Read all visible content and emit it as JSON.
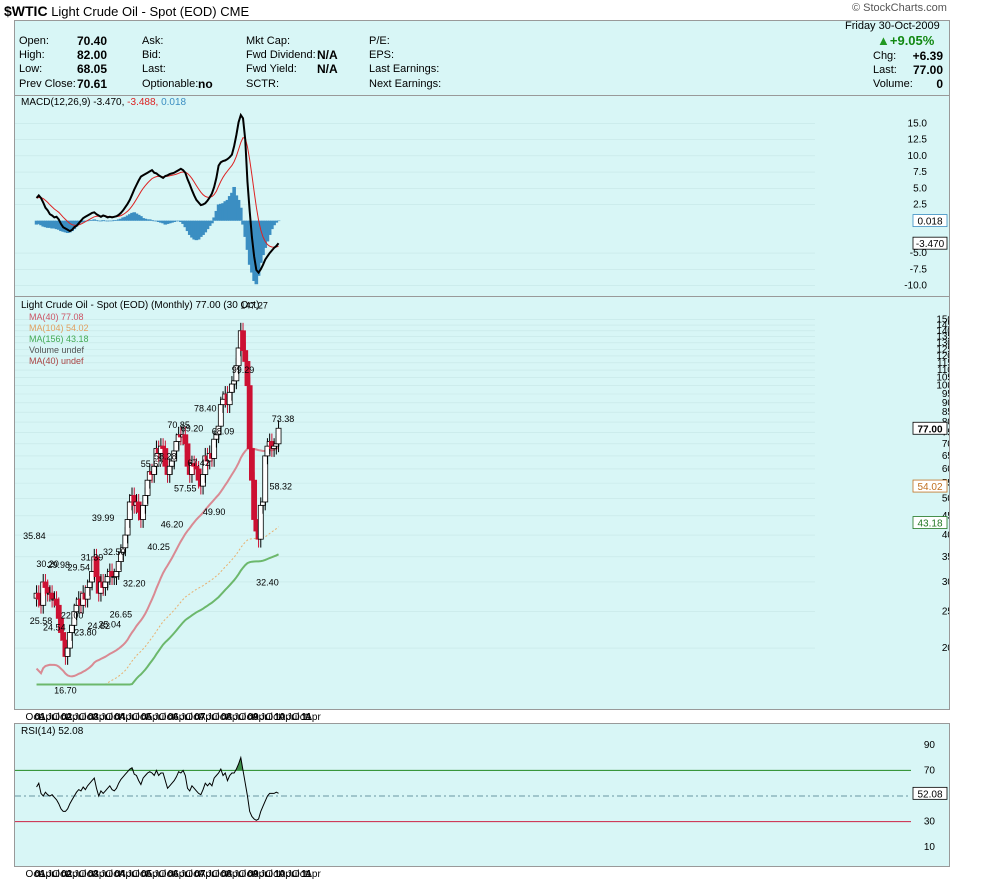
{
  "header": {
    "symbol": "$WTIC",
    "name": "Light Crude Oil - Spot (EOD)",
    "exchange": "CME",
    "brand": "© StockCharts.com"
  },
  "quote": {
    "day_date": "Friday  30-Oct-2009",
    "pct_change": "+9.05%",
    "fields": [
      {
        "label": "Open:",
        "value": "70.40"
      },
      {
        "label": "High:",
        "value": "82.00"
      },
      {
        "label": "Low:",
        "value": "68.05"
      },
      {
        "label": "Prev Close:",
        "value": "70.61"
      },
      {
        "label": "Ask:",
        "value": ""
      },
      {
        "label": "Bid:",
        "value": ""
      },
      {
        "label": "Last:",
        "value": ""
      },
      {
        "label": "Optionable:",
        "value": "no"
      },
      {
        "label": "Mkt Cap:",
        "value": ""
      },
      {
        "label": "Fwd Dividend:",
        "value": "N/A"
      },
      {
        "label": "Fwd Yield:",
        "value": "N/A"
      },
      {
        "label": "SCTR:",
        "value": ""
      },
      {
        "label": "P/E:",
        "value": ""
      },
      {
        "label": "EPS:",
        "value": ""
      },
      {
        "label": "Last Earnings:",
        "value": ""
      },
      {
        "label": "Next Earnings:",
        "value": ""
      },
      {
        "label": "Chg:",
        "value": "+6.39"
      },
      {
        "label": "Last:",
        "value": "77.00"
      },
      {
        "label": "Volume:",
        "value": "0"
      }
    ]
  },
  "chart_data": {
    "type": "candlestick",
    "period": "Monthly",
    "title": "Light Crude Oil - Spot (EOD) (Monthly) 77.00 (30 Oct)",
    "x_axis": {
      "start_year": 2001,
      "end_year": 2011,
      "tick_labels": [
        "Oct",
        "01",
        "Apr",
        "Jul",
        "Oct",
        "02",
        "Apr",
        "Jul",
        "Oct",
        "03",
        "Apr",
        "Jul",
        "Oct",
        "04",
        "Apr",
        "Jul",
        "Oct",
        "05",
        "Apr",
        "Jul",
        "Oct",
        "06",
        "Apr",
        "Jul",
        "Oct",
        "07",
        "Apr",
        "Jul",
        "Oct",
        "08",
        "Apr",
        "Jul",
        "Oct",
        "09",
        "Apr",
        "Jul",
        "Oct",
        "10",
        "Apr",
        "Jul",
        "Oct",
        "11",
        "Apr"
      ]
    },
    "price_axis": {
      "scale": "log",
      "range": [
        15,
        160
      ],
      "ticks": [
        20,
        25,
        30,
        35,
        40,
        45,
        50,
        55,
        60,
        65,
        70,
        75,
        80,
        85,
        90,
        95,
        100,
        105,
        110,
        115,
        120,
        125,
        130,
        135,
        140,
        145,
        150
      ]
    },
    "legend": [
      {
        "label": "MA(40) 77.08",
        "color": "#cc5566"
      },
      {
        "label": "MA(104) 54.02",
        "color": "#e0a060"
      },
      {
        "label": "MA(156) 43.18",
        "color": "#44aa55"
      },
      {
        "label": "Volume undef",
        "color": "#555555"
      },
      {
        "label": "MA(40) undef",
        "color": "#aa4444"
      }
    ],
    "price_close": [
      28,
      27,
      26,
      30,
      29,
      28,
      28,
      27,
      27,
      26,
      24,
      22,
      21,
      19,
      20,
      22,
      23,
      25,
      26,
      27,
      26,
      28,
      27,
      29,
      30,
      32,
      35,
      31,
      28,
      30,
      29,
      30,
      31,
      32,
      31,
      31,
      32,
      34,
      36,
      37,
      40,
      44,
      49,
      51,
      48,
      49,
      46,
      44,
      48,
      51,
      56,
      59,
      58,
      61,
      68,
      66,
      69,
      68,
      61,
      58,
      61,
      63,
      67,
      71,
      74,
      73,
      74,
      70,
      61,
      58,
      62,
      61,
      60,
      56,
      54,
      58,
      65,
      63,
      66,
      64,
      72,
      74,
      78,
      89,
      92,
      95,
      89,
      96,
      101,
      103,
      113,
      126,
      140,
      124,
      116,
      100,
      68,
      56,
      44,
      41,
      39,
      48,
      49,
      65,
      69,
      71,
      68,
      69,
      70,
      77
    ],
    "annotations": [
      35.84,
      25.58,
      30.2,
      24.54,
      29.98,
      22.0,
      16.7,
      29.54,
      23.8,
      31.39,
      24.82,
      39.99,
      25.04,
      32.5,
      26.65,
      32.2,
      55.67,
      40.25,
      58.28,
      46.2,
      70.85,
      57.55,
      69.2,
      67.42,
      78.4,
      49.9,
      68.09,
      99.29,
      147.27,
      32.4,
      73.38,
      58.32
    ],
    "annotation_boxes": {
      "last": "77.00",
      "ma104": "54.02",
      "ma156": "43.18"
    },
    "macd": {
      "label": "MACD(12,26,9) -3.470, -3.488, 0.018",
      "params": "MACD(12,26,9)",
      "macd_value": "-3.470",
      "signal_value": "-3.488",
      "hist_value": "0.018",
      "range": [
        -11,
        18
      ],
      "ticks": [
        -10.0,
        -7.5,
        -5.0,
        2.5,
        5.0,
        7.5,
        10.0,
        12.5,
        15.0
      ],
      "value_labels": {
        "hist": "0.018",
        "macd": "-3.470"
      },
      "macd_line": [
        3.5,
        3.9,
        3.5,
        2.8,
        2.0,
        1.6,
        1.0,
        0.8,
        0.5,
        0.6,
        0.2,
        -0.5,
        -1.0,
        -1.2,
        -1.4,
        -1.6,
        -1.4,
        -1.0,
        -0.8,
        -0.4,
        0.0,
        0.4,
        0.6,
        0.8,
        1.0,
        1.2,
        1.3,
        1.0,
        0.8,
        0.6,
        0.8,
        0.7,
        0.5,
        0.6,
        0.5,
        0.6,
        0.7,
        0.9,
        1.2,
        1.6,
        2.1,
        2.6,
        3.2,
        4.0,
        4.8,
        5.5,
        6.2,
        6.8,
        7.0,
        7.2,
        7.4,
        7.6,
        7.8,
        7.4,
        7.3,
        7.0,
        6.8,
        6.6,
        6.9,
        7.0,
        7.2,
        7.3,
        7.4,
        7.6,
        7.8,
        8.0,
        7.8,
        7.4,
        6.4,
        5.6,
        4.7,
        3.9,
        3.2,
        2.8,
        2.4,
        2.5,
        2.7,
        3.1,
        3.6,
        4.2,
        5.2,
        6.6,
        8.5,
        9.0,
        9.2,
        9.3,
        9.5,
        9.8,
        10.2,
        11.5,
        13.2,
        15.2,
        16.3,
        15.8,
        12.5,
        6.0,
        1.5,
        -2.5,
        -5.5,
        -7.6,
        -8.0,
        -7.5,
        -6.8,
        -6.0,
        -5.5,
        -5.0,
        -4.6,
        -4.2,
        -3.9,
        -3.47
      ],
      "hist": [
        -0.6,
        -0.5,
        -0.7,
        -0.9,
        -1.0,
        -1.1,
        -1.1,
        -1.2,
        -1.2,
        -1.3,
        -1.4,
        -1.6,
        -1.7,
        -1.8,
        -1.9,
        -1.8,
        -1.6,
        -1.3,
        -0.9,
        -0.6,
        -0.3,
        -0.2,
        -0.1,
        0.0,
        0.1,
        0.1,
        0.2,
        0.1,
        0.0,
        -0.1,
        0.1,
        0.0,
        -0.1,
        0.0,
        0.0,
        0.1,
        0.1,
        0.2,
        0.3,
        0.5,
        0.6,
        0.8,
        1.0,
        1.2,
        1.3,
        1.1,
        0.9,
        0.7,
        0.4,
        0.3,
        0.2,
        0.2,
        0.1,
        0.0,
        -0.1,
        -0.2,
        -0.3,
        -0.4,
        -0.6,
        -0.5,
        -0.4,
        -0.3,
        -0.2,
        -0.1,
        0.0,
        -0.2,
        -0.5,
        -1.0,
        -1.6,
        -2.2,
        -2.6,
        -2.9,
        -3.0,
        -2.9,
        -2.5,
        -2.2,
        -1.8,
        -1.3,
        -0.8,
        -0.4,
        0.5,
        1.5,
        2.5,
        2.6,
        2.7,
        3.0,
        3.2,
        3.8,
        4.3,
        5.2,
        3.9,
        3.2,
        2.0,
        -0.6,
        -2.5,
        -4.5,
        -6.8,
        -8.0,
        -9.3,
        -9.8,
        -8.5,
        -6.5,
        -5.3,
        -4.2,
        -3.2,
        -2.2,
        -1.3,
        -0.7,
        -0.3,
        0.018
      ]
    },
    "rsi": {
      "label": "RSI(14) 52.08",
      "params": "RSI(14)",
      "value": "52.08",
      "range": [
        0,
        100
      ],
      "ticks": [
        10,
        30,
        50,
        70,
        90
      ],
      "overbought": 70,
      "oversold": 30,
      "value_label": "52.08",
      "series": [
        57,
        60,
        52,
        50,
        53,
        51,
        50,
        51,
        49,
        47,
        44,
        40,
        38,
        38,
        40,
        44,
        47,
        50,
        53,
        55,
        54,
        57,
        55,
        58,
        60,
        62,
        64,
        56,
        50,
        54,
        52,
        54,
        56,
        58,
        55,
        54,
        56,
        60,
        63,
        65,
        67,
        69,
        71,
        72,
        67,
        66,
        62,
        59,
        64,
        66,
        68,
        69,
        68,
        66,
        70,
        66,
        68,
        68,
        62,
        56,
        58,
        60,
        62,
        65,
        69,
        68,
        70,
        66,
        56,
        54,
        58,
        56,
        54,
        52,
        51,
        55,
        60,
        58,
        60,
        58,
        64,
        66,
        68,
        71,
        66,
        68,
        62,
        66,
        68,
        68,
        71,
        75,
        80,
        70,
        60,
        50,
        38,
        34,
        32,
        31,
        32,
        38,
        42,
        46,
        50,
        52,
        52,
        52,
        53,
        52.08
      ]
    }
  }
}
